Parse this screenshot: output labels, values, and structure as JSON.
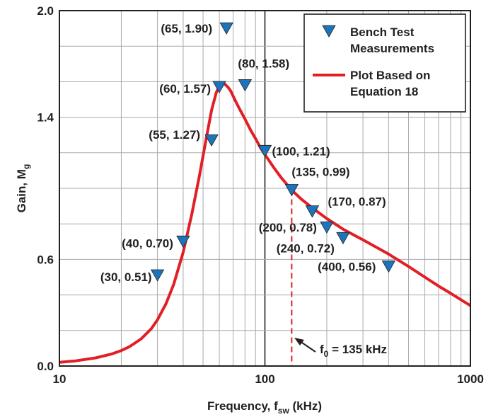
{
  "chart_data": {
    "type": "scatter",
    "title": "",
    "x_scale": "log",
    "xlim": [
      10,
      1000
    ],
    "ylim": [
      0,
      2.0
    ],
    "grid": true,
    "xlabel": {
      "main": "Frequency, f",
      "sub": "sw",
      "tail": " (kHz)"
    },
    "ylabel": {
      "main": "Gain, M",
      "sub": "g"
    },
    "x_ticks": [
      {
        "value": 10,
        "label": "10"
      },
      {
        "value": 100,
        "label": "100"
      },
      {
        "value": 1000,
        "label": "1000"
      }
    ],
    "y_ticks": [
      {
        "value": 0,
        "label": "0.0"
      },
      {
        "value": 0.6,
        "label": "0.6"
      },
      {
        "value": 1.4,
        "label": "1.4"
      },
      {
        "value": 2.0,
        "label": "2.0"
      }
    ],
    "legend": {
      "placement": "top-right",
      "entries": [
        {
          "label_lines": [
            "Bench Test",
            "Measurements"
          ],
          "marker": "triangle-down"
        },
        {
          "label_lines": [
            "Plot Based on",
            "Equation 18"
          ],
          "marker": "line"
        }
      ]
    },
    "colors": {
      "measurement": "#1c75bc",
      "curve": "#e21e26",
      "axis": "#231f20",
      "grid": "#a7a9ac"
    },
    "series": [
      {
        "name": "Bench Test Measurements",
        "marker": "triangle-down",
        "points": [
          {
            "x": 30,
            "y": 0.51,
            "label": "(30, 0.51)"
          },
          {
            "x": 40,
            "y": 0.7,
            "label": "(40, 0.70)"
          },
          {
            "x": 55,
            "y": 1.27,
            "label": "(55, 1.27)"
          },
          {
            "x": 60,
            "y": 1.57,
            "label": "(60, 1.57)"
          },
          {
            "x": 65,
            "y": 1.9,
            "label": "(65, 1.90)"
          },
          {
            "x": 80,
            "y": 1.58,
            "label": "(80, 1.58)"
          },
          {
            "x": 100,
            "y": 1.21,
            "label": "(100, 1.21)"
          },
          {
            "x": 135,
            "y": 0.99,
            "label": "(135, 0.99)"
          },
          {
            "x": 170,
            "y": 0.87,
            "label": "(170, 0.87)"
          },
          {
            "x": 200,
            "y": 0.78,
            "label": "(200, 0.78)"
          },
          {
            "x": 240,
            "y": 0.72,
            "label": "(240, 0.72)"
          },
          {
            "x": 400,
            "y": 0.56,
            "label": "(400, 0.56)"
          }
        ]
      },
      {
        "name": "Plot Based on Equation 18",
        "type": "line",
        "x": [
          10,
          12,
          15,
          18,
          20,
          22,
          25,
          28,
          30,
          33,
          36,
          40,
          44,
          48,
          52,
          55,
          58,
          60,
          62,
          64,
          66,
          68,
          70,
          72,
          75,
          80,
          85,
          90,
          95,
          100,
          110,
          120,
          135,
          150,
          170,
          200,
          240,
          300,
          400,
          500,
          600,
          700,
          800,
          1000
        ],
        "y": [
          0.021,
          0.029,
          0.046,
          0.068,
          0.087,
          0.11,
          0.153,
          0.21,
          0.26,
          0.35,
          0.46,
          0.64,
          0.85,
          1.07,
          1.29,
          1.44,
          1.54,
          1.575,
          1.59,
          1.585,
          1.57,
          1.55,
          1.52,
          1.49,
          1.45,
          1.39,
          1.33,
          1.28,
          1.23,
          1.19,
          1.12,
          1.06,
          0.99,
          0.94,
          0.89,
          0.83,
          0.77,
          0.71,
          0.63,
          0.56,
          0.5,
          0.45,
          0.41,
          0.34
        ]
      }
    ],
    "annotations": [
      {
        "x": 135,
        "label": {
          "main": "f",
          "sub": "0",
          "tail": " = 135 kHz"
        },
        "style": "dashed-vertical"
      }
    ]
  }
}
